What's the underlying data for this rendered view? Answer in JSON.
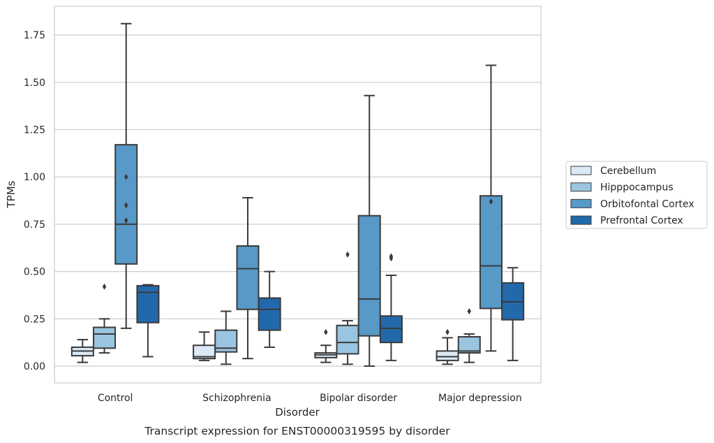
{
  "chart_data": {
    "type": "box",
    "title": "",
    "caption": "Transcript expression for ENST00000319595 by disorder",
    "xlabel": "Disorder",
    "ylabel": "TPMs",
    "ylim": [
      -0.09,
      1.9
    ],
    "yticks": [
      "0.00",
      "0.25",
      "0.50",
      "0.75",
      "1.00",
      "1.25",
      "1.50",
      "1.75"
    ],
    "grid": "horizontal",
    "legend_position": "right",
    "categories": [
      "Control",
      "Schizophrenia",
      "Bipolar disorder",
      "Major depression"
    ],
    "series": [
      {
        "name": "Cerebellum",
        "color": "#dbe9f6",
        "boxes": [
          {
            "whisker_low": 0.02,
            "q1": 0.055,
            "median": 0.08,
            "q3": 0.1,
            "whisker_high": 0.14,
            "outliers": []
          },
          {
            "whisker_low": 0.03,
            "q1": 0.04,
            "median": 0.05,
            "q3": 0.11,
            "whisker_high": 0.18,
            "outliers": []
          },
          {
            "whisker_low": 0.02,
            "q1": 0.045,
            "median": 0.06,
            "q3": 0.07,
            "whisker_high": 0.11,
            "outliers": [
              0.18
            ]
          },
          {
            "whisker_low": 0.01,
            "q1": 0.03,
            "median": 0.05,
            "q3": 0.08,
            "whisker_high": 0.15,
            "outliers": [
              0.18
            ]
          }
        ]
      },
      {
        "name": "Hipppocampus",
        "color": "#9ac5e0",
        "boxes": [
          {
            "whisker_low": 0.07,
            "q1": 0.095,
            "median": 0.17,
            "q3": 0.205,
            "whisker_high": 0.25,
            "outliers": [
              0.42
            ]
          },
          {
            "whisker_low": 0.01,
            "q1": 0.075,
            "median": 0.095,
            "q3": 0.19,
            "whisker_high": 0.29,
            "outliers": []
          },
          {
            "whisker_low": 0.01,
            "q1": 0.065,
            "median": 0.125,
            "q3": 0.215,
            "whisker_high": 0.24,
            "outliers": [
              0.59
            ]
          },
          {
            "whisker_low": 0.02,
            "q1": 0.07,
            "median": 0.08,
            "q3": 0.155,
            "whisker_high": 0.17,
            "outliers": [
              0.29
            ]
          }
        ]
      },
      {
        "name": "Orbitofontal Cortex",
        "color": "#5799c7",
        "boxes": [
          {
            "whisker_low": 0.2,
            "q1": 0.54,
            "median": 0.75,
            "q3": 1.17,
            "whisker_high": 1.81,
            "outliers": [
              1.0,
              0.85,
              0.77
            ]
          },
          {
            "whisker_low": 0.04,
            "q1": 0.3,
            "median": 0.515,
            "q3": 0.635,
            "whisker_high": 0.89,
            "outliers": []
          },
          {
            "whisker_low": 0.0,
            "q1": 0.16,
            "median": 0.355,
            "q3": 0.795,
            "whisker_high": 1.43,
            "outliers": []
          },
          {
            "whisker_low": 0.08,
            "q1": 0.305,
            "median": 0.53,
            "q3": 0.9,
            "whisker_high": 1.59,
            "outliers": [
              0.87
            ]
          }
        ]
      },
      {
        "name": "Prefrontal Cortex",
        "color": "#2269ac",
        "boxes": [
          {
            "whisker_low": 0.05,
            "q1": 0.23,
            "median": 0.39,
            "q3": 0.425,
            "whisker_high": 0.43,
            "outliers": []
          },
          {
            "whisker_low": 0.1,
            "q1": 0.19,
            "median": 0.3,
            "q3": 0.36,
            "whisker_high": 0.5,
            "outliers": []
          },
          {
            "whisker_low": 0.03,
            "q1": 0.125,
            "median": 0.2,
            "q3": 0.265,
            "whisker_high": 0.48,
            "outliers": [
              0.58,
              0.57
            ]
          },
          {
            "whisker_low": 0.03,
            "q1": 0.245,
            "median": 0.34,
            "q3": 0.44,
            "whisker_high": 0.52,
            "outliers": []
          }
        ]
      }
    ]
  }
}
